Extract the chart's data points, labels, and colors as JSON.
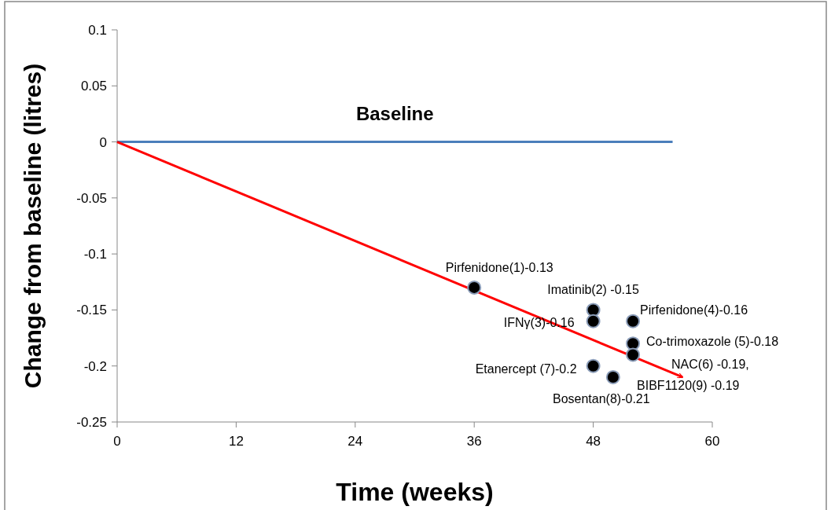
{
  "chart_data": {
    "type": "scatter",
    "xlabel": "Time (weeks)",
    "ylabel": "Change from baseline (litres)",
    "xlim": [
      0,
      60
    ],
    "xticks": [
      0,
      12,
      24,
      36,
      48,
      60
    ],
    "ylim": [
      -0.25,
      0.1
    ],
    "yticks": [
      -0.25,
      -0.2,
      -0.15,
      -0.1,
      -0.05,
      0,
      0.05,
      0.1
    ],
    "grid": false,
    "series": [
      {
        "type": "line",
        "name": "Baseline",
        "color": "#4a7ebb",
        "x": [
          0,
          56
        ],
        "values": [
          0,
          0
        ]
      },
      {
        "type": "line",
        "color": "#ff0000",
        "x": [
          0,
          57
        ],
        "values": [
          0,
          -0.21
        ]
      },
      {
        "type": "scatter",
        "color": "#000000",
        "marker": "circle",
        "x": [
          36,
          48,
          48,
          52,
          52,
          52,
          48,
          50
        ],
        "values": [
          -0.13,
          -0.15,
          -0.16,
          -0.16,
          -0.18,
          -0.19,
          -0.2,
          -0.21
        ]
      }
    ],
    "annotations": [
      {
        "text": "Pirfenidone(1)-0.13",
        "x": 36,
        "y": -0.13
      },
      {
        "text": "Imatinib(2) -0.15",
        "x": 48,
        "y": -0.15
      },
      {
        "text": "IFNγ(3)-0.16",
        "x": 48,
        "y": -0.16
      },
      {
        "text": "Pirfenidone(4)-0.16",
        "x": 52,
        "y": -0.16
      },
      {
        "text": "Co-trimoxazole (5)-0.18",
        "x": 52,
        "y": -0.18
      },
      {
        "text": "NAC(6) -0.19, BIBF1120(9) -0.19",
        "x": 52,
        "y": -0.19
      },
      {
        "text": "Etanercept (7)-0.2",
        "x": 48,
        "y": -0.2
      },
      {
        "text": "Bosentan(8)-0.21",
        "x": 50,
        "y": -0.21
      }
    ]
  }
}
